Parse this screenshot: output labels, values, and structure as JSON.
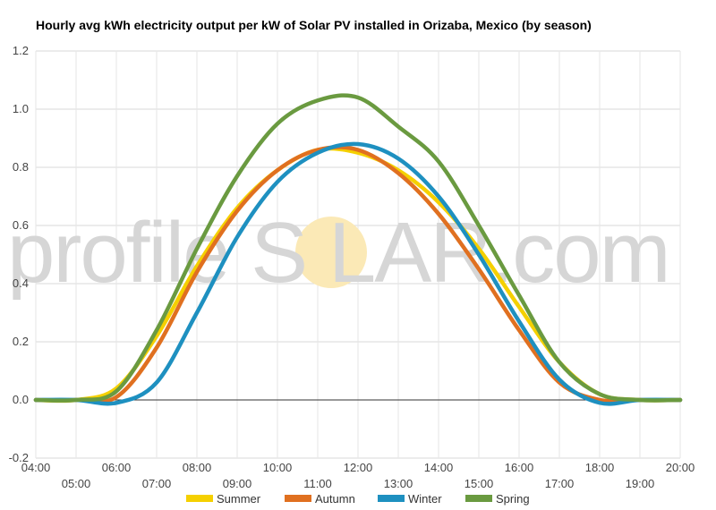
{
  "chart_data": {
    "type": "line",
    "title": "Hourly avg kWh electricity output per kW of Solar PV installed in Orizaba, Mexico (by season)",
    "watermark": {
      "left": "profile",
      "mid": "S",
      "right": "LAR.com",
      "sun_color": "#fbe9b6"
    },
    "xlabel": "",
    "ylabel": "",
    "xlim": [
      4,
      20
    ],
    "ylim": [
      -0.2,
      1.2
    ],
    "y_ticks": [
      "1.2",
      "1.0",
      "0.8",
      "0.6",
      "0.4",
      "0.2",
      "0.0",
      "-0.2"
    ],
    "y_tick_values": [
      1.2,
      1.0,
      0.8,
      0.6,
      0.4,
      0.2,
      0.0,
      -0.2
    ],
    "x_ticks_upper": [
      "04:00",
      "06:00",
      "08:00",
      "10:00",
      "12:00",
      "14:00",
      "16:00",
      "18:00",
      "20:00"
    ],
    "x_ticks_upper_values": [
      4,
      6,
      8,
      10,
      12,
      14,
      16,
      18,
      20
    ],
    "x_ticks_lower": [
      "05:00",
      "07:00",
      "09:00",
      "11:00",
      "13:00",
      "15:00",
      "17:00",
      "19:00"
    ],
    "x_ticks_lower_values": [
      5,
      7,
      9,
      11,
      13,
      15,
      17,
      19
    ],
    "grid": true,
    "legend_position": "bottom",
    "x": [
      4,
      5,
      6,
      7,
      8,
      9,
      10,
      11,
      12,
      13,
      14,
      15,
      16,
      17,
      18,
      19,
      20
    ],
    "series": [
      {
        "name": "Summer",
        "color": "#f5d000",
        "values": [
          0.0,
          0.0,
          0.04,
          0.22,
          0.46,
          0.66,
          0.79,
          0.86,
          0.85,
          0.79,
          0.68,
          0.52,
          0.32,
          0.13,
          0.02,
          0.0,
          0.0
        ]
      },
      {
        "name": "Autumn",
        "color": "#e07020",
        "values": [
          0.0,
          0.0,
          0.01,
          0.18,
          0.44,
          0.65,
          0.79,
          0.86,
          0.86,
          0.78,
          0.64,
          0.45,
          0.24,
          0.06,
          0.0,
          0.0,
          0.0
        ]
      },
      {
        "name": "Winter",
        "color": "#1e90c0",
        "values": [
          0.0,
          0.0,
          -0.01,
          0.06,
          0.3,
          0.56,
          0.75,
          0.85,
          0.88,
          0.83,
          0.7,
          0.5,
          0.27,
          0.07,
          -0.01,
          0.0,
          0.0
        ]
      },
      {
        "name": "Spring",
        "color": "#6a9a40",
        "values": [
          0.0,
          0.0,
          0.03,
          0.24,
          0.52,
          0.77,
          0.95,
          1.03,
          1.04,
          0.94,
          0.82,
          0.6,
          0.36,
          0.13,
          0.02,
          0.0,
          0.0
        ]
      }
    ]
  }
}
